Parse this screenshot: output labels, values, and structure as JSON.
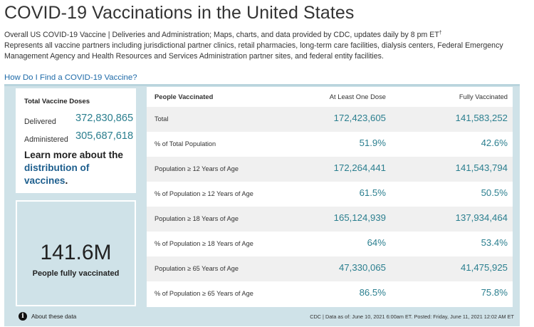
{
  "header": {
    "title": "COVID-19 Vaccinations in the United States",
    "subtitle_line1": "Overall US COVID-19 Vaccine | Deliveries and Administration; Maps, charts, and data provided by CDC, updates daily by 8 pm ET",
    "subtitle_mark": "†",
    "subtitle_line2": "Represents all vaccine partners including jurisdictional partner clinics, retail pharmacies, long-term care facilities, dialysis centers, Federal Emergency Management Agency and Health Resources and Services Administration partner sites, and federal entity facilities.",
    "find_link": "How Do I Find a COVID-19 Vaccine?"
  },
  "doses": {
    "heading": "Total Vaccine Doses",
    "delivered_label": "Delivered",
    "delivered_value": "372,830,865",
    "administered_label": "Administered",
    "administered_value": "305,687,618",
    "learn_prefix": "Learn more about the",
    "learn_link": "distribution of vaccines",
    "learn_suffix": "."
  },
  "highlight": {
    "value": "141.6M",
    "label": "People fully vaccinated"
  },
  "table": {
    "headers": [
      "People Vaccinated",
      "At Least One Dose",
      "Fully Vaccinated"
    ],
    "rows": [
      {
        "label": "Total",
        "one_dose": "172,423,605",
        "fully": "141,583,252"
      },
      {
        "label": "% of Total Population",
        "one_dose": "51.9%",
        "fully": "42.6%"
      },
      {
        "label": "Population ≥ 12 Years of Age",
        "one_dose": "172,264,441",
        "fully": "141,543,794"
      },
      {
        "label": "% of Population ≥ 12 Years of Age",
        "one_dose": "61.5%",
        "fully": "50.5%"
      },
      {
        "label": "Population ≥ 18 Years of Age",
        "one_dose": "165,124,939",
        "fully": "137,934,464"
      },
      {
        "label": "% of Population ≥ 18 Years of Age",
        "one_dose": "64%",
        "fully": "53.4%"
      },
      {
        "label": "Population ≥ 65 Years of Age",
        "one_dose": "47,330,065",
        "fully": "41,475,925"
      },
      {
        "label": "% of Population ≥ 65 Years of Age",
        "one_dose": "86.5%",
        "fully": "75.8%"
      }
    ]
  },
  "footer": {
    "info_glyph": "i",
    "about": "About these data",
    "source": "CDC | Data as of: June 10, 2021 6:00am ET. Posted: Friday, June 11, 2021 12:02 AM ET"
  },
  "colors": {
    "accent_value": "#2b7f8f",
    "link": "#1e6aa8",
    "panel_bg": "#cfe2e8",
    "row_shade": "#f0f0f0"
  }
}
